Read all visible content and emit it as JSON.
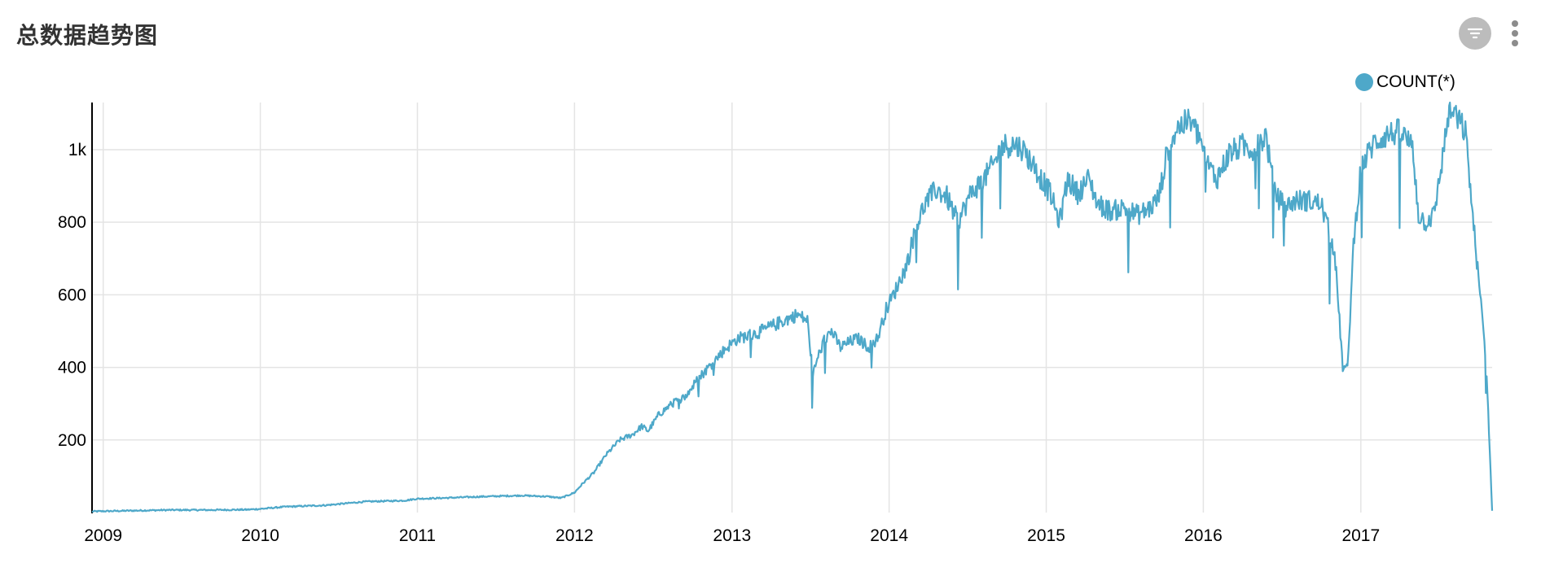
{
  "card": {
    "title": "总数据趋势图"
  },
  "toolbar": {
    "filter_icon": "filter-icon",
    "more_icon": "more-vertical-icon"
  },
  "colors": {
    "series": "#4ea8c9",
    "grid": "#e4e4e4",
    "axis": "#000000",
    "icon_bg": "#bcbcbc"
  },
  "chart_data": {
    "type": "line",
    "title": "总数据趋势图",
    "xlabel": "",
    "ylabel": "",
    "x_ticks": [
      "2009",
      "2010",
      "2011",
      "2012",
      "2013",
      "2014",
      "2015",
      "2016",
      "2017"
    ],
    "y_ticks": [
      "200",
      "400",
      "600",
      "800",
      "1k"
    ],
    "y_tick_values": [
      200,
      400,
      600,
      800,
      1000
    ],
    "xlim": [
      "2008-12-06",
      "2017-11-02"
    ],
    "ylim": [
      0,
      1130
    ],
    "grid": true,
    "legend_position": "top-right",
    "series": [
      {
        "name": "COUNT(*)",
        "color": "#4ea8c9",
        "points": [
          [
            "2008-12-06",
            3
          ],
          [
            "2009-03-01",
            5
          ],
          [
            "2009-06-01",
            7
          ],
          [
            "2009-09-01",
            7
          ],
          [
            "2009-12-01",
            8
          ],
          [
            "2010-01-01",
            10
          ],
          [
            "2010-03-01",
            16
          ],
          [
            "2010-06-01",
            20
          ],
          [
            "2010-09-01",
            30
          ],
          [
            "2010-12-01",
            33
          ],
          [
            "2011-01-01",
            38
          ],
          [
            "2011-03-01",
            40
          ],
          [
            "2011-06-01",
            44
          ],
          [
            "2011-09-01",
            47
          ],
          [
            "2011-11-01",
            44
          ],
          [
            "2011-12-01",
            40
          ],
          [
            "2012-01-01",
            55
          ],
          [
            "2012-01-20",
            80
          ],
          [
            "2012-02-15",
            110
          ],
          [
            "2012-03-15",
            160
          ],
          [
            "2012-04-15",
            200
          ],
          [
            "2012-05-15",
            215
          ],
          [
            "2012-06-05",
            238
          ],
          [
            "2012-06-20",
            225
          ],
          [
            "2012-07-15",
            270
          ],
          [
            "2012-08-15",
            300
          ],
          [
            "2012-09-15",
            320
          ],
          [
            "2012-10-15",
            370
          ],
          [
            "2012-11-15",
            410
          ],
          [
            "2012-12-15",
            450
          ],
          [
            "2013-01-15",
            480
          ],
          [
            "2013-03-01",
            495
          ],
          [
            "2013-04-15",
            520
          ],
          [
            "2013-06-01",
            545
          ],
          [
            "2013-06-25",
            530
          ],
          [
            "2013-07-08",
            380
          ],
          [
            "2013-07-20",
            430
          ],
          [
            "2013-08-05",
            480
          ],
          [
            "2013-08-20",
            500
          ],
          [
            "2013-09-10",
            455
          ],
          [
            "2013-10-01",
            470
          ],
          [
            "2013-10-20",
            480
          ],
          [
            "2013-11-15",
            455
          ],
          [
            "2013-12-05",
            480
          ],
          [
            "2013-12-25",
            560
          ],
          [
            "2014-01-15",
            610
          ],
          [
            "2014-02-10",
            680
          ],
          [
            "2014-03-05",
            790
          ],
          [
            "2014-03-25",
            850
          ],
          [
            "2014-04-20",
            890
          ],
          [
            "2014-05-15",
            870
          ],
          [
            "2014-06-10",
            800
          ],
          [
            "2014-07-10",
            880
          ],
          [
            "2014-08-10",
            920
          ],
          [
            "2014-09-01",
            960
          ],
          [
            "2014-09-20",
            1010
          ],
          [
            "2014-10-15",
            1015
          ],
          [
            "2014-11-05",
            1005
          ],
          [
            "2014-12-01",
            960
          ],
          [
            "2014-12-20",
            920
          ],
          [
            "2015-01-10",
            880
          ],
          [
            "2015-02-01",
            800
          ],
          [
            "2015-02-20",
            920
          ],
          [
            "2015-03-15",
            880
          ],
          [
            "2015-04-10",
            920
          ],
          [
            "2015-05-01",
            850
          ],
          [
            "2015-06-01",
            830
          ],
          [
            "2015-07-01",
            840
          ],
          [
            "2015-08-01",
            820
          ],
          [
            "2015-09-01",
            840
          ],
          [
            "2015-09-20",
            870
          ],
          [
            "2015-10-10",
            1000
          ],
          [
            "2015-11-01",
            1060
          ],
          [
            "2015-12-01",
            1080
          ],
          [
            "2015-12-25",
            1030
          ],
          [
            "2016-01-10",
            960
          ],
          [
            "2016-02-01",
            920
          ],
          [
            "2016-03-01",
            990
          ],
          [
            "2016-04-01",
            1010
          ],
          [
            "2016-05-01",
            1000
          ],
          [
            "2016-05-25",
            1040
          ],
          [
            "2016-06-15",
            880
          ],
          [
            "2016-07-10",
            840
          ],
          [
            "2016-08-01",
            860
          ],
          [
            "2016-09-01",
            860
          ],
          [
            "2016-10-01",
            850
          ],
          [
            "2016-11-01",
            720
          ],
          [
            "2016-11-20",
            400
          ],
          [
            "2016-12-01",
            395
          ],
          [
            "2016-12-15",
            740
          ],
          [
            "2017-01-01",
            950
          ],
          [
            "2017-02-01",
            1020
          ],
          [
            "2017-03-01",
            1040
          ],
          [
            "2017-04-01",
            1050
          ],
          [
            "2017-05-01",
            1010
          ],
          [
            "2017-05-15",
            820
          ],
          [
            "2017-06-01",
            800
          ],
          [
            "2017-06-20",
            820
          ],
          [
            "2017-07-10",
            980
          ],
          [
            "2017-07-25",
            1110
          ],
          [
            "2017-08-10",
            1090
          ],
          [
            "2017-09-01",
            1050
          ],
          [
            "2017-09-20",
            790
          ],
          [
            "2017-10-05",
            600
          ],
          [
            "2017-10-15",
            470
          ],
          [
            "2017-10-22",
            330
          ],
          [
            "2017-11-02",
            5
          ]
        ]
      }
    ]
  }
}
